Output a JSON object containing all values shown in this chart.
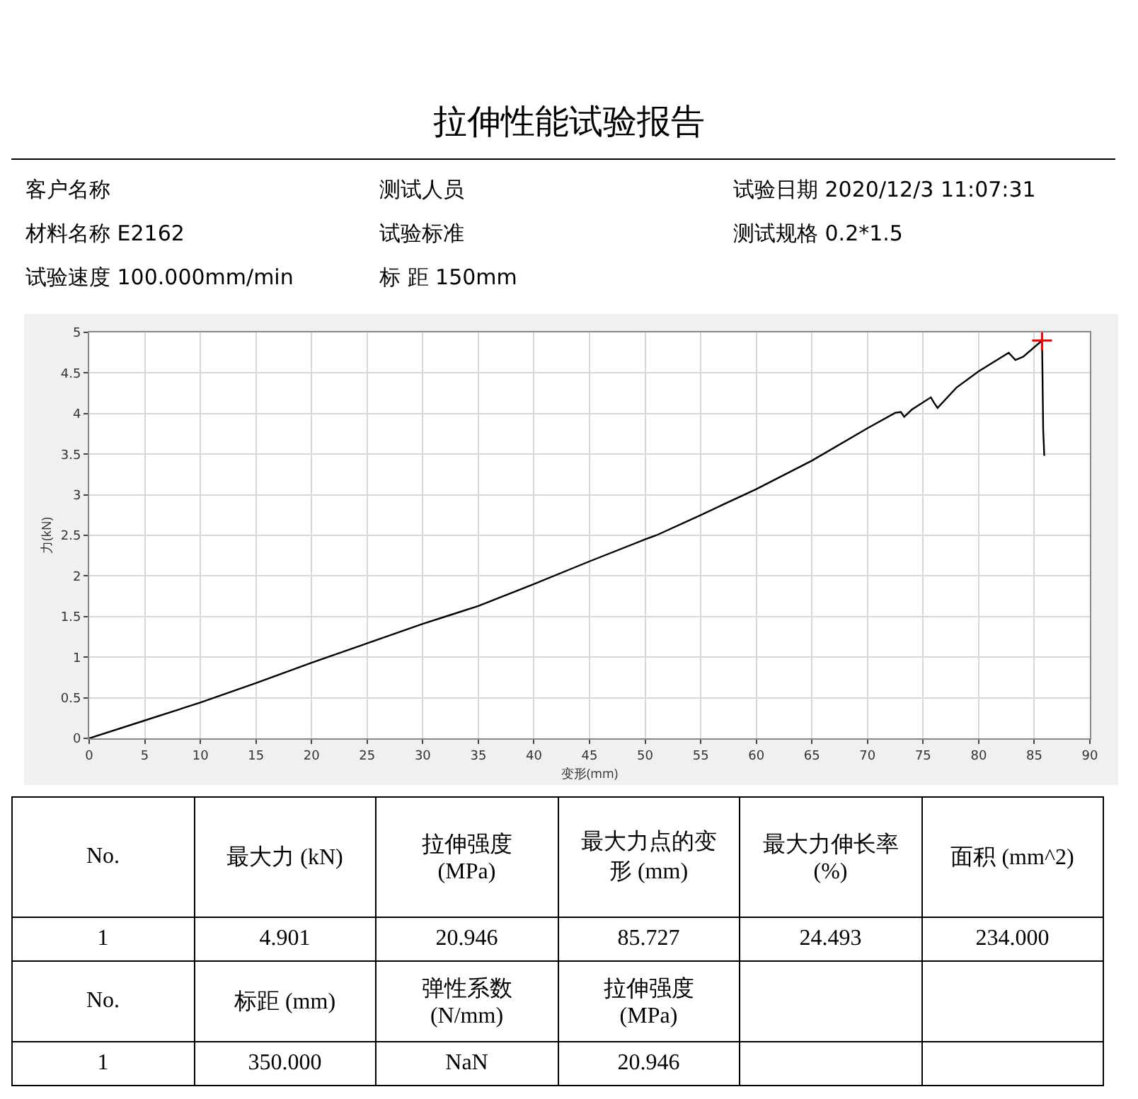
{
  "chart_data": {
    "type": "line",
    "title": "拉伸性能试验报告",
    "xlabel": "变形(mm)",
    "ylabel": "力(kN)",
    "xlim": [
      0,
      90
    ],
    "xticks": [
      0,
      5,
      10,
      15,
      20,
      25,
      30,
      35,
      40,
      45,
      50,
      55,
      60,
      65,
      70,
      75,
      80,
      85,
      90
    ],
    "ylim": [
      0,
      5
    ],
    "yticks": [
      0,
      0.5,
      1,
      1.5,
      2,
      2.5,
      3,
      3.5,
      4,
      4.5,
      5
    ],
    "grid": true,
    "line_style": "solid",
    "series": [
      {
        "color": "#000000",
        "marker": "none",
        "x": [
          0,
          5,
          10,
          15,
          20,
          25,
          30,
          32.5,
          35,
          40,
          45,
          50,
          51,
          55,
          60,
          65,
          70,
          72.5,
          73,
          73.3,
          74,
          75.7,
          76,
          76.3,
          78,
          80,
          82.7,
          83.3,
          84,
          85.7,
          85.8,
          85.9
        ],
        "values": [
          0,
          0.22,
          0.44,
          0.68,
          0.93,
          1.17,
          1.41,
          1.52,
          1.63,
          1.9,
          2.18,
          2.45,
          2.5,
          2.75,
          3.07,
          3.42,
          3.82,
          4.01,
          4.02,
          3.96,
          4.05,
          4.2,
          4.13,
          4.07,
          4.32,
          4.52,
          4.75,
          4.66,
          4.7,
          4.9,
          3.8,
          3.48
        ]
      },
      {
        "type": "scatter",
        "color": "#ff0000",
        "marker": "cross",
        "x": [
          85.7
        ],
        "values": [
          4.9
        ]
      }
    ],
    "annotations": [
      "客户名称",
      "测试人员",
      "试验日期 2020/12/3 11:07:31",
      "材料名称 E2162",
      "试验标准",
      "测试规格 0.2*1.5",
      "试验速度 100.000mm/min",
      "标 距 150mm",
      "No.",
      "最大力 (kN)",
      "拉伸强度 (MPa)",
      "最大力点的变形 (mm)",
      "最大力伸长率 (%)",
      "面积 (mm^2)",
      "1",
      "4.901",
      "20.946",
      "85.727",
      "24.493",
      "234.000",
      "No.",
      "标距 (mm)",
      "弹性系数 (N/mm)",
      "拉伸强度 (MPa)",
      "1",
      "350.000",
      "NaN",
      "20.946"
    ]
  }
}
